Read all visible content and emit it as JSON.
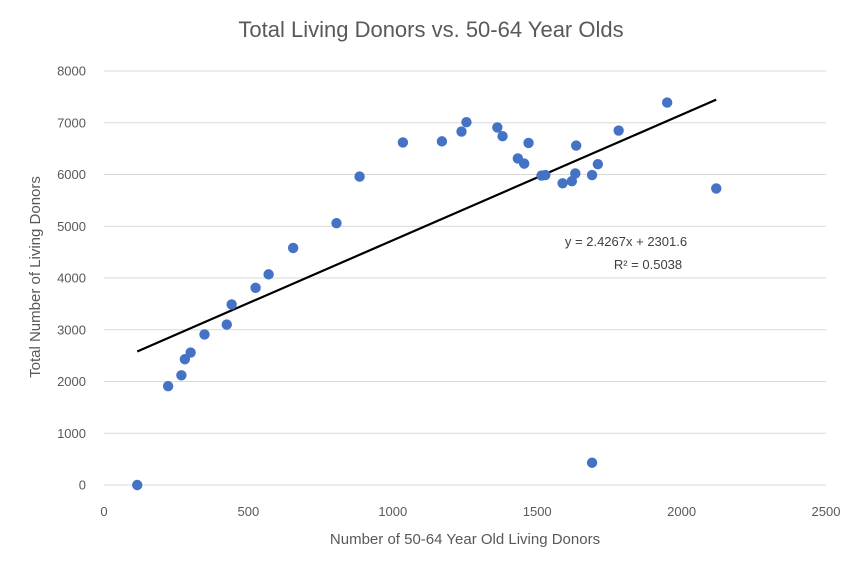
{
  "chart_data": {
    "type": "scatter",
    "title": "Total Living Donors vs. 50-64 Year Olds",
    "xlabel": "Number of 50-64 Year Old Living Donors",
    "ylabel": "Total Number of Living Donors",
    "xlim": [
      0,
      2500
    ],
    "ylim": [
      0,
      8000
    ],
    "x_ticks": [
      "0",
      "500",
      "1000",
      "1500",
      "2000",
      "2500"
    ],
    "y_ticks": [
      "0",
      "1000",
      "2000",
      "3000",
      "4000",
      "5000",
      "6000",
      "7000",
      "8000"
    ],
    "grid": "horizontal",
    "marker_color": "#4472c4",
    "trendline_color": "#000000",
    "trendline": {
      "slope": 2.4267,
      "intercept": 2301.6,
      "x_range": [
        115,
        2120
      ],
      "equation": "y = 2.4267x + 2301.6",
      "r_squared": "R² = 0.5038"
    },
    "points": [
      {
        "x": 115,
        "y": 0
      },
      {
        "x": 222,
        "y": 1910
      },
      {
        "x": 268,
        "y": 2120
      },
      {
        "x": 280,
        "y": 2430
      },
      {
        "x": 300,
        "y": 2560
      },
      {
        "x": 348,
        "y": 2910
      },
      {
        "x": 425,
        "y": 3100
      },
      {
        "x": 442,
        "y": 3490
      },
      {
        "x": 525,
        "y": 3810
      },
      {
        "x": 570,
        "y": 4070
      },
      {
        "x": 655,
        "y": 4580
      },
      {
        "x": 805,
        "y": 5060
      },
      {
        "x": 885,
        "y": 5960
      },
      {
        "x": 1035,
        "y": 6620
      },
      {
        "x": 1170,
        "y": 6640
      },
      {
        "x": 1238,
        "y": 6830
      },
      {
        "x": 1255,
        "y": 7010
      },
      {
        "x": 1362,
        "y": 6910
      },
      {
        "x": 1380,
        "y": 6740
      },
      {
        "x": 1433,
        "y": 6310
      },
      {
        "x": 1455,
        "y": 6210
      },
      {
        "x": 1470,
        "y": 6610
      },
      {
        "x": 1515,
        "y": 5980
      },
      {
        "x": 1528,
        "y": 5990
      },
      {
        "x": 1588,
        "y": 5830
      },
      {
        "x": 1620,
        "y": 5870
      },
      {
        "x": 1632,
        "y": 6020
      },
      {
        "x": 1635,
        "y": 6560
      },
      {
        "x": 1690,
        "y": 5990
      },
      {
        "x": 1690,
        "y": 430
      },
      {
        "x": 1710,
        "y": 6200
      },
      {
        "x": 1782,
        "y": 6850
      },
      {
        "x": 1950,
        "y": 7390
      },
      {
        "x": 2120,
        "y": 5730
      }
    ]
  }
}
